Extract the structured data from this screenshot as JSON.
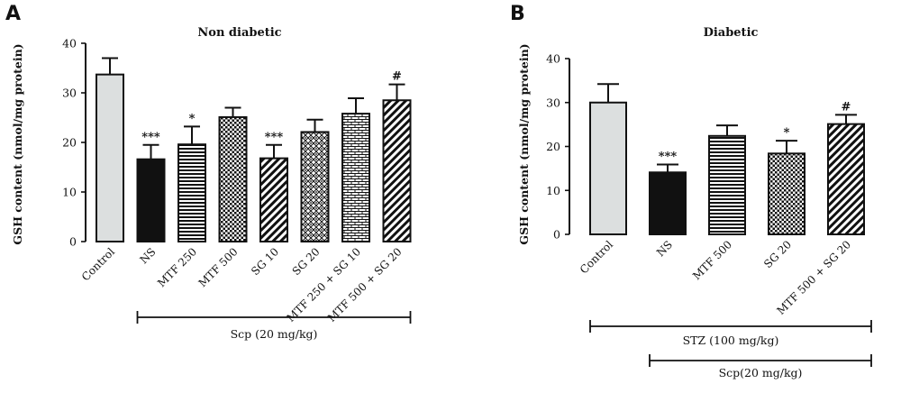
{
  "chart_data": [
    {
      "type": "bar",
      "panel_letter": "A",
      "title": "Non diabetic",
      "ylabel": "GSH content (nmol/mg protein)",
      "ylim": [
        0,
        40
      ],
      "yticks": [
        "0",
        "10",
        "20",
        "30",
        "40"
      ],
      "categories": [
        "Control",
        "NS",
        "MTF 250",
        "MTF 500",
        "SG 10",
        "SG 20",
        "MTF 250 + SG 10",
        "MTF 500 + SG 20"
      ],
      "values": [
        33.7,
        16.6,
        19.6,
        25.1,
        16.8,
        22.1,
        25.8,
        28.5
      ],
      "errors": [
        3.3,
        2.9,
        3.6,
        1.9,
        2.7,
        2.5,
        3.1,
        3.2
      ],
      "significance": [
        "",
        "***",
        "*",
        "",
        "***",
        "",
        "",
        "#"
      ],
      "patterns": [
        "light-gray",
        "black",
        "horizontal-lines",
        "checker",
        "diagonal",
        "dotted-diamond",
        "brick",
        "diagonal"
      ],
      "brackets": [
        {
          "label": "Scp (20 mg/kg)",
          "from": 1,
          "to": 7
        }
      ]
    },
    {
      "type": "bar",
      "panel_letter": "B",
      "title": "Diabetic",
      "ylabel": "GSH content (nmol/mg protein)",
      "ylim": [
        0,
        40
      ],
      "yticks": [
        "0",
        "10",
        "20",
        "30",
        "40"
      ],
      "categories": [
        "Control",
        "NS",
        "MTF 500",
        "SG 20",
        "MTF 500 + SG 20"
      ],
      "values": [
        30.0,
        14.1,
        22.4,
        18.4,
        25.1
      ],
      "errors": [
        4.2,
        1.8,
        2.4,
        2.9,
        2.1
      ],
      "significance": [
        "",
        "***",
        "",
        "*",
        "#"
      ],
      "patterns": [
        "light-gray",
        "black",
        "horizontal-lines",
        "checker",
        "diagonal"
      ],
      "brackets": [
        {
          "label": "STZ (100 mg/kg)",
          "from": 0,
          "to": 4
        },
        {
          "label": "Scp(20 mg/kg)",
          "from": 1,
          "to": 4
        }
      ]
    }
  ]
}
